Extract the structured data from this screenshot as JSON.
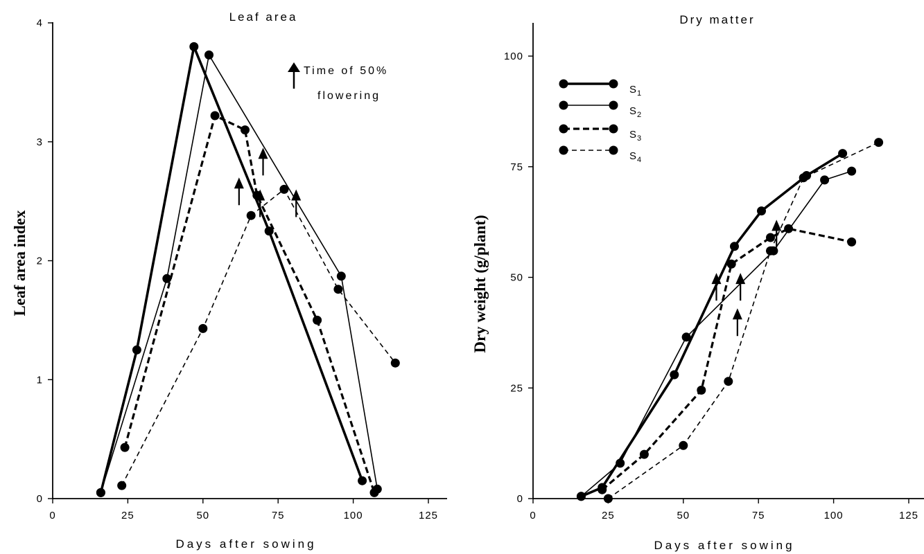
{
  "chart_data": [
    {
      "type": "line",
      "title": "Leaf area",
      "xlabel": "Days after sowing",
      "ylabel": "Leaf area index",
      "xlim": [
        0,
        130
      ],
      "ylim": [
        0,
        4
      ],
      "xticks": [
        "0",
        "25",
        "50",
        "75",
        "100",
        "125"
      ],
      "yticks": [
        "0",
        "1",
        "2",
        "3",
        "4"
      ],
      "annotation": {
        "line1": "Time of 50%",
        "line2": "flowering"
      },
      "series": [
        {
          "style": "thick-solid",
          "points": [
            [
              16,
              0.05
            ],
            [
              28,
              1.25
            ],
            [
              47,
              3.8
            ],
            [
              72,
              2.25
            ],
            [
              103,
              0.15
            ]
          ],
          "flowering": {
            "x": 62,
            "y": 2.7
          }
        },
        {
          "style": "thin-solid",
          "points": [
            [
              16,
              0.05
            ],
            [
              38,
              1.85
            ],
            [
              52,
              3.73
            ],
            [
              96,
              1.87
            ],
            [
              108,
              0.08
            ]
          ],
          "flowering": {
            "x": 69,
            "y": 2.6
          }
        },
        {
          "style": "thick-dash",
          "points": [
            [
              24,
              0.43
            ],
            [
              54,
              3.22
            ],
            [
              64,
              3.1
            ],
            [
              68,
              2.55
            ],
            [
              88,
              1.5
            ],
            [
              107,
              0.05
            ]
          ],
          "flowering": {
            "x": 70,
            "y": 2.95
          }
        },
        {
          "style": "thin-dash",
          "points": [
            [
              23,
              0.11
            ],
            [
              50,
              1.43
            ],
            [
              66,
              2.38
            ],
            [
              77,
              2.6
            ],
            [
              95,
              1.76
            ],
            [
              114,
              1.14
            ]
          ],
          "flowering": {
            "x": 81,
            "y": 2.6
          }
        }
      ]
    },
    {
      "type": "line",
      "title": "Dry matter",
      "xlabel": "Days after sowing",
      "ylabel": "Dry weight (g/plant)",
      "xlim": [
        0,
        130
      ],
      "ylim": [
        0,
        107
      ],
      "xticks": [
        "0",
        "25",
        "50",
        "75",
        "100",
        "125"
      ],
      "yticks": [
        "0",
        "25",
        "50",
        "75",
        "100"
      ],
      "legend": {
        "position": "top-left",
        "entries": [
          {
            "main": "S",
            "sub": "1",
            "style": "thick-solid"
          },
          {
            "main": "S",
            "sub": "2",
            "style": "thin-solid"
          },
          {
            "main": "S",
            "sub": "3",
            "style": "thick-dash"
          },
          {
            "main": "S",
            "sub": "4",
            "style": "thin-dash"
          }
        ]
      },
      "series": [
        {
          "style": "thick-solid",
          "points": [
            [
              16,
              0.5
            ],
            [
              23,
              2.5
            ],
            [
              47,
              28
            ],
            [
              67,
              57
            ],
            [
              76,
              65
            ],
            [
              91,
              73
            ],
            [
              103,
              78
            ]
          ],
          "flowering": {
            "x": 61,
            "y": 51
          }
        },
        {
          "style": "thin-solid",
          "points": [
            [
              16,
              0.5
            ],
            [
              29,
              8
            ],
            [
              51,
              36.5
            ],
            [
              80,
              56
            ],
            [
              97,
              72
            ],
            [
              106,
              74
            ]
          ],
          "flowering": {
            "x": 69,
            "y": 51
          }
        },
        {
          "style": "thick-dash",
          "points": [
            [
              23,
              2
            ],
            [
              37,
              10
            ],
            [
              56,
              24.5
            ],
            [
              66,
              53
            ],
            [
              79,
              59
            ],
            [
              85,
              61
            ],
            [
              106,
              58
            ]
          ],
          "flowering": {
            "x": 81,
            "y": 63
          }
        },
        {
          "style": "thin-dash",
          "points": [
            [
              25,
              0
            ],
            [
              50,
              12
            ],
            [
              65,
              26.5
            ],
            [
              79,
              56
            ],
            [
              90,
              72.5
            ],
            [
              115,
              80.5
            ]
          ],
          "flowering": {
            "x": 68,
            "y": 43
          }
        }
      ]
    }
  ]
}
